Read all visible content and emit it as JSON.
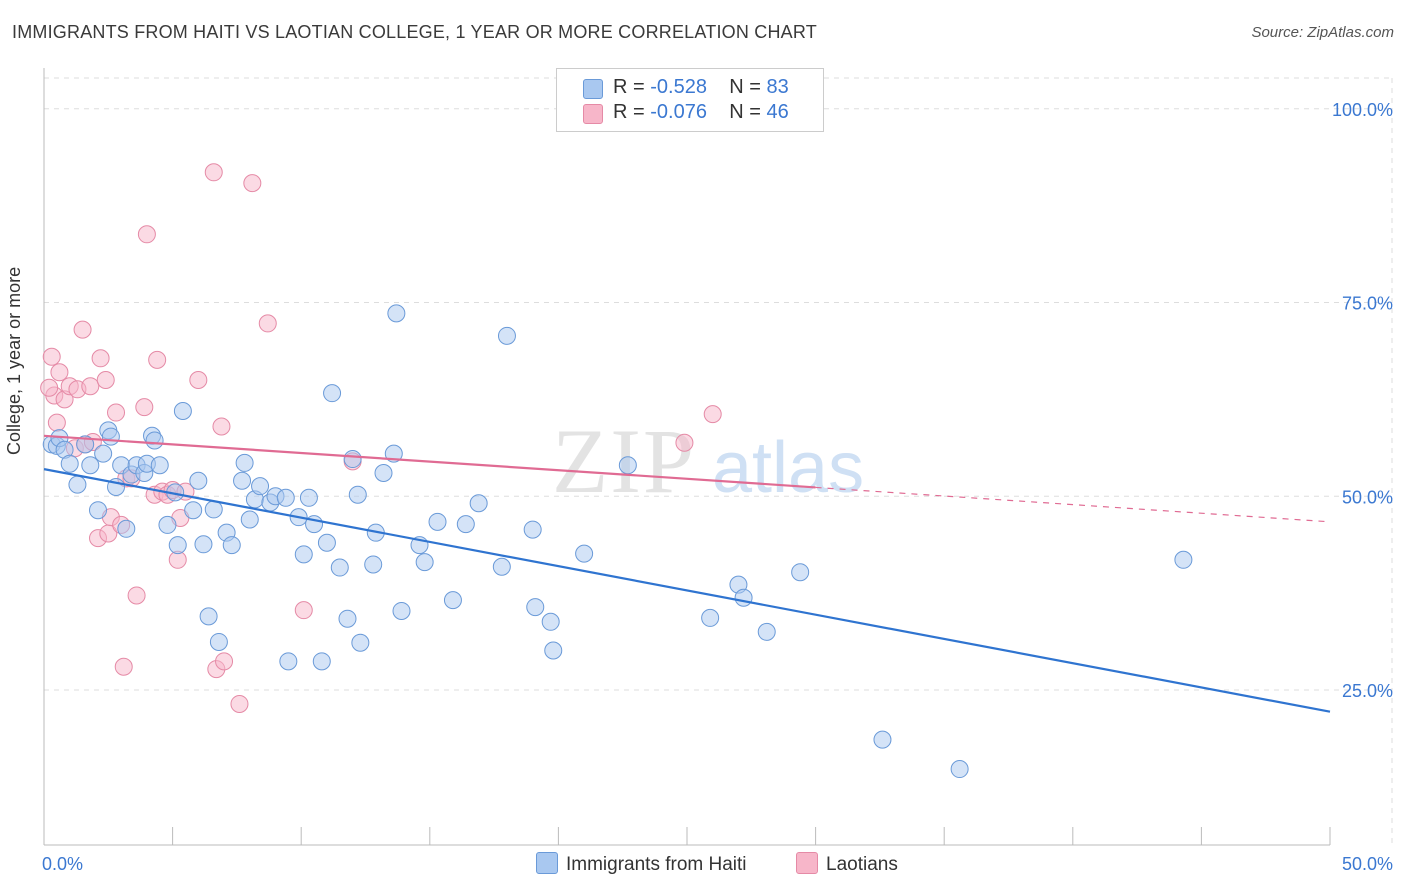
{
  "title": "IMMIGRANTS FROM HAITI VS LAOTIAN COLLEGE, 1 YEAR OR MORE CORRELATION CHART",
  "source": "Source: ZipAtlas.com",
  "watermark": {
    "zip": "ZIP",
    "atlas": "atlas"
  },
  "legend": {
    "items": [
      {
        "r_label": "R =",
        "r_value": "-0.528",
        "n_label": "N =",
        "n_value": "83",
        "color": "#a9c8f0"
      },
      {
        "r_label": "R =",
        "r_value": "-0.076",
        "n_label": "N =",
        "n_value": "46",
        "color": "#f7b6c9"
      }
    ]
  },
  "colors": {
    "haiti_fill": "#a9c8f0",
    "haiti_stroke": "#6a9ad8",
    "haiti_line": "#2f74d0",
    "laos_fill": "#f7b6c9",
    "laos_stroke": "#e58aa6",
    "laos_line": "#e06b93",
    "grid": "#dddddd",
    "tick_label": "#3b78d1"
  },
  "chart_data": {
    "type": "scatter",
    "xlabel": "",
    "ylabel": "College, 1 year or more",
    "xlim": [
      0,
      50
    ],
    "ylim": [
      5,
      105
    ],
    "x_tick_labels": [
      "0.0%",
      "50.0%"
    ],
    "y_ticks": [
      25,
      50,
      75,
      100
    ],
    "y_tick_labels": [
      "25.0%",
      "50.0%",
      "75.0%",
      "100.0%"
    ],
    "grid": "horizontal dashed",
    "legend_position": "top-center",
    "series": [
      {
        "name": "Immigrants from Haiti",
        "trend": {
          "x": [
            0,
            50
          ],
          "y": [
            53.5,
            22.2
          ],
          "dashed_from": null
        },
        "points": [
          [
            0.3,
            56.7
          ],
          [
            0.5,
            56.5
          ],
          [
            0.6,
            57.5
          ],
          [
            0.8,
            56
          ],
          [
            1.0,
            54.2
          ],
          [
            1.3,
            51.5
          ],
          [
            1.6,
            56.7
          ],
          [
            1.8,
            54
          ],
          [
            2.1,
            48.2
          ],
          [
            2.3,
            55.5
          ],
          [
            2.5,
            58.5
          ],
          [
            2.6,
            57.7
          ],
          [
            2.8,
            51.2
          ],
          [
            3.0,
            54
          ],
          [
            3.2,
            45.8
          ],
          [
            3.4,
            52.8
          ],
          [
            3.6,
            54
          ],
          [
            3.9,
            53
          ],
          [
            4.0,
            54.2
          ],
          [
            4.2,
            57.8
          ],
          [
            4.3,
            57.2
          ],
          [
            4.5,
            54
          ],
          [
            4.8,
            46.3
          ],
          [
            5.1,
            50.5
          ],
          [
            5.2,
            43.7
          ],
          [
            5.4,
            61
          ],
          [
            5.8,
            48.2
          ],
          [
            6.0,
            52
          ],
          [
            6.2,
            43.8
          ],
          [
            6.4,
            34.5
          ],
          [
            6.6,
            48.3
          ],
          [
            6.8,
            31.2
          ],
          [
            7.1,
            45.3
          ],
          [
            7.3,
            43.7
          ],
          [
            7.7,
            52
          ],
          [
            7.8,
            54.3
          ],
          [
            8.0,
            47
          ],
          [
            8.2,
            49.6
          ],
          [
            8.4,
            51.3
          ],
          [
            8.8,
            49.2
          ],
          [
            9.0,
            50
          ],
          [
            9.4,
            49.8
          ],
          [
            9.5,
            28.7
          ],
          [
            9.9,
            47.3
          ],
          [
            10.1,
            42.5
          ],
          [
            10.3,
            49.8
          ],
          [
            10.5,
            46.4
          ],
          [
            10.8,
            28.7
          ],
          [
            11.0,
            44
          ],
          [
            11.2,
            63.3
          ],
          [
            11.5,
            40.8
          ],
          [
            11.8,
            34.2
          ],
          [
            12.0,
            54.8
          ],
          [
            12.2,
            50.2
          ],
          [
            12.3,
            31.1
          ],
          [
            12.8,
            41.2
          ],
          [
            12.9,
            45.3
          ],
          [
            13.2,
            53
          ],
          [
            13.6,
            55.5
          ],
          [
            13.7,
            73.6
          ],
          [
            13.9,
            35.2
          ],
          [
            14.6,
            43.7
          ],
          [
            14.8,
            41.5
          ],
          [
            15.3,
            46.7
          ],
          [
            15.9,
            36.6
          ],
          [
            16.4,
            46.4
          ],
          [
            16.9,
            49.1
          ],
          [
            17.8,
            40.9
          ],
          [
            18.0,
            70.7
          ],
          [
            19.0,
            45.7
          ],
          [
            19.1,
            35.7
          ],
          [
            19.7,
            33.8
          ],
          [
            19.8,
            30.1
          ],
          [
            21.0,
            42.6
          ],
          [
            22.7,
            54
          ],
          [
            25.9,
            34.3
          ],
          [
            27.0,
            38.6
          ],
          [
            27.2,
            36.9
          ],
          [
            28.1,
            32.5
          ],
          [
            29.4,
            40.2
          ],
          [
            32.6,
            18.6
          ],
          [
            35.6,
            14.8
          ],
          [
            44.3,
            41.8
          ]
        ]
      },
      {
        "name": "Laotians",
        "trend": {
          "x": [
            0,
            50
          ],
          "y": [
            57.8,
            46.7
          ],
          "dashed_from": 30
        },
        "points": [
          [
            0.3,
            68
          ],
          [
            0.4,
            63
          ],
          [
            0.5,
            59.5
          ],
          [
            0.6,
            66
          ],
          [
            0.8,
            62.5
          ],
          [
            1.0,
            64.2
          ],
          [
            1.2,
            56.2
          ],
          [
            1.3,
            63.8
          ],
          [
            1.5,
            71.5
          ],
          [
            1.6,
            56.7
          ],
          [
            1.8,
            64.2
          ],
          [
            1.9,
            57
          ],
          [
            2.1,
            44.6
          ],
          [
            2.2,
            67.8
          ],
          [
            2.4,
            65
          ],
          [
            2.5,
            45.2
          ],
          [
            2.6,
            47.3
          ],
          [
            2.8,
            60.8
          ],
          [
            3.0,
            46.3
          ],
          [
            3.1,
            28
          ],
          [
            3.2,
            52.3
          ],
          [
            3.4,
            52.3
          ],
          [
            3.6,
            37.2
          ],
          [
            3.9,
            61.5
          ],
          [
            4.0,
            83.8
          ],
          [
            4.3,
            50.2
          ],
          [
            4.4,
            67.6
          ],
          [
            4.6,
            50.6
          ],
          [
            4.8,
            50.2
          ],
          [
            5.0,
            50.8
          ],
          [
            5.2,
            41.8
          ],
          [
            5.3,
            47.2
          ],
          [
            5.5,
            50.6
          ],
          [
            6.0,
            65
          ],
          [
            6.6,
            91.8
          ],
          [
            6.7,
            27.7
          ],
          [
            6.9,
            59
          ],
          [
            7.0,
            28.7
          ],
          [
            7.6,
            23.2
          ],
          [
            8.1,
            90.4
          ],
          [
            8.7,
            72.3
          ],
          [
            10.1,
            35.3
          ],
          [
            12.0,
            54.5
          ],
          [
            24.9,
            56.9
          ],
          [
            26.0,
            60.6
          ],
          [
            0.2,
            64
          ]
        ]
      }
    ]
  },
  "bottom_legend": {
    "haiti": "Immigrants from Haiti",
    "laos": "Laotians"
  }
}
